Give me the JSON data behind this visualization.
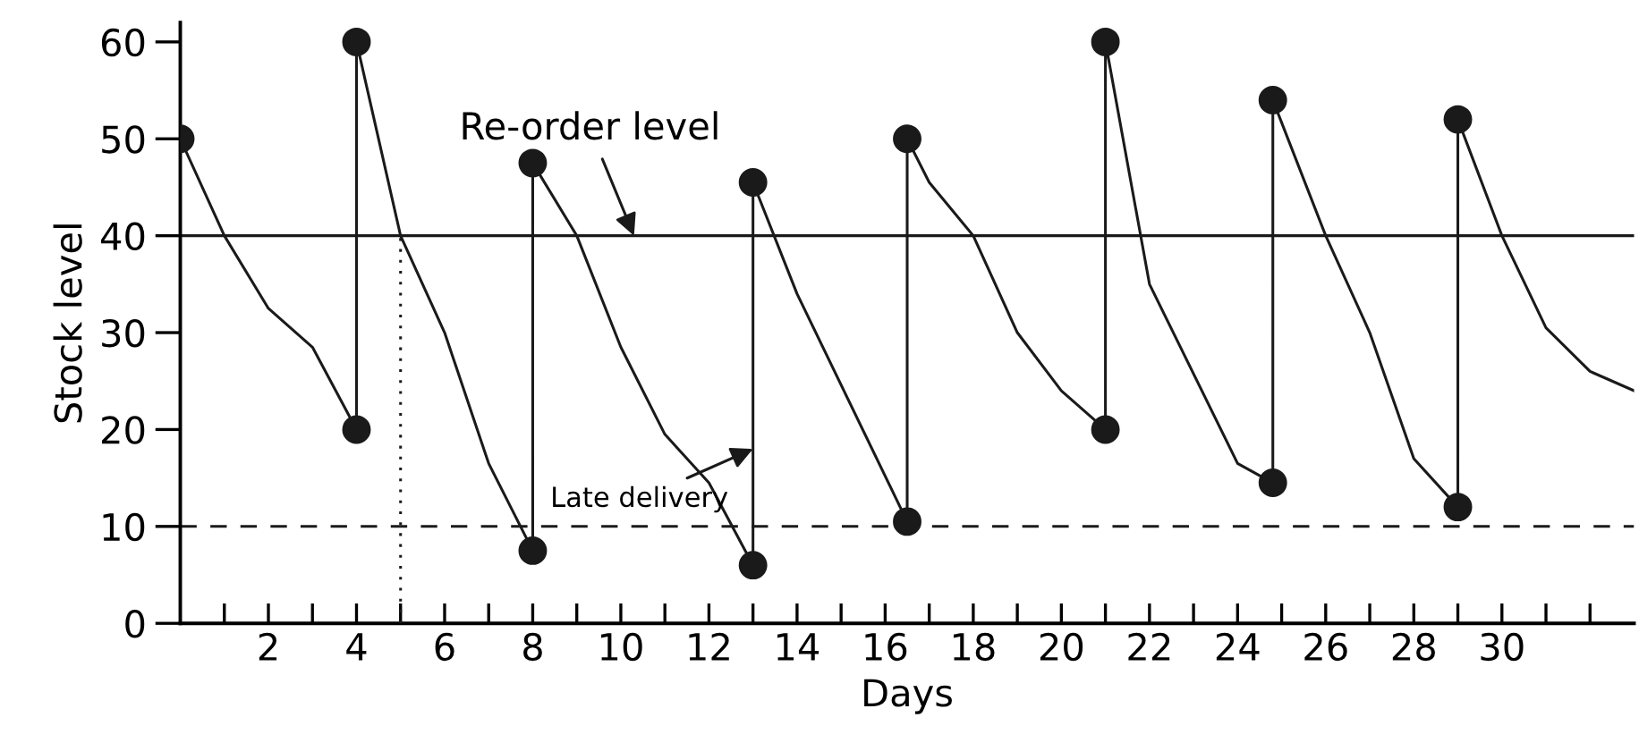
{
  "chart_data": {
    "type": "line",
    "xlabel": "Days",
    "ylabel": "Stock level",
    "xlim": [
      0,
      33
    ],
    "ylim": [
      0,
      62
    ],
    "xticks": [
      {
        "value": 1,
        "label": null
      },
      2,
      {
        "value": 3,
        "label": null
      },
      4,
      {
        "value": 5,
        "label": null
      },
      6,
      {
        "value": 7,
        "label": null
      },
      8,
      {
        "value": 9,
        "label": null
      },
      10,
      {
        "value": 11,
        "label": null
      },
      12,
      {
        "value": 13,
        "label": null
      },
      14,
      {
        "value": 15,
        "label": null
      },
      16,
      {
        "value": 17,
        "label": null
      },
      18,
      {
        "value": 19,
        "label": null
      },
      20,
      {
        "value": 21,
        "label": null
      },
      22,
      {
        "value": 23,
        "label": null
      },
      24,
      {
        "value": 25,
        "label": null
      },
      26,
      {
        "value": 27,
        "label": null
      },
      28,
      {
        "value": 29,
        "label": null
      },
      30,
      {
        "value": 31,
        "label": null
      },
      {
        "value": 32,
        "label": null
      }
    ],
    "yticks": [
      0,
      10,
      20,
      30,
      40,
      50,
      60
    ],
    "grid": false,
    "legend": false,
    "series": [
      {
        "color": "#1a1a1a",
        "marker": "none",
        "line_style": "solid",
        "x": [
          0,
          1,
          2,
          3,
          4,
          4,
          5,
          6,
          7,
          8,
          8,
          9,
          10,
          11,
          12,
          13,
          13,
          14,
          16.5,
          16.5,
          17,
          18,
          19,
          20,
          21,
          21,
          22,
          24,
          24.8,
          24.8,
          26,
          27,
          28,
          29,
          29,
          30,
          31,
          32,
          33
        ],
        "values": [
          50,
          40,
          32.5,
          28.5,
          20,
          60,
          40,
          30,
          16.5,
          7.5,
          47.5,
          40,
          28.5,
          19.5,
          14.5,
          6,
          45.5,
          34,
          10.5,
          50,
          45.5,
          40,
          30,
          24,
          20,
          60,
          35,
          16.5,
          14.5,
          54,
          40,
          30,
          17,
          12,
          52,
          40,
          30.5,
          26,
          24
        ]
      },
      {
        "type": "scatter",
        "color": "#1a1a1a",
        "marker": "circle",
        "x": [
          0,
          4,
          4,
          8,
          8,
          13,
          13,
          16.5,
          16.5,
          21,
          21,
          24.8,
          24.8,
          29,
          29
        ],
        "values": [
          50,
          20,
          60,
          7.5,
          47.5,
          6,
          45.5,
          10.5,
          50,
          20,
          60,
          14.5,
          54,
          12,
          52
        ]
      },
      {
        "type": "line",
        "color": "#1a1a1a",
        "marker": "none",
        "line_style": "dotted",
        "x": [
          5,
          5
        ],
        "values": [
          0,
          40
        ]
      }
    ],
    "ref_lines": [
      {
        "axis": "y",
        "value": 40,
        "color": "#1a1a1a",
        "line_style": "solid"
      },
      {
        "axis": "y",
        "value": 10,
        "color": "#1a1a1a",
        "line_style": "dashed"
      }
    ],
    "annotations": [
      {
        "text": "Re-order level",
        "x": 10.3,
        "y": 40
      },
      {
        "text": "Late delivery",
        "x": 13,
        "y": 18
      }
    ]
  }
}
